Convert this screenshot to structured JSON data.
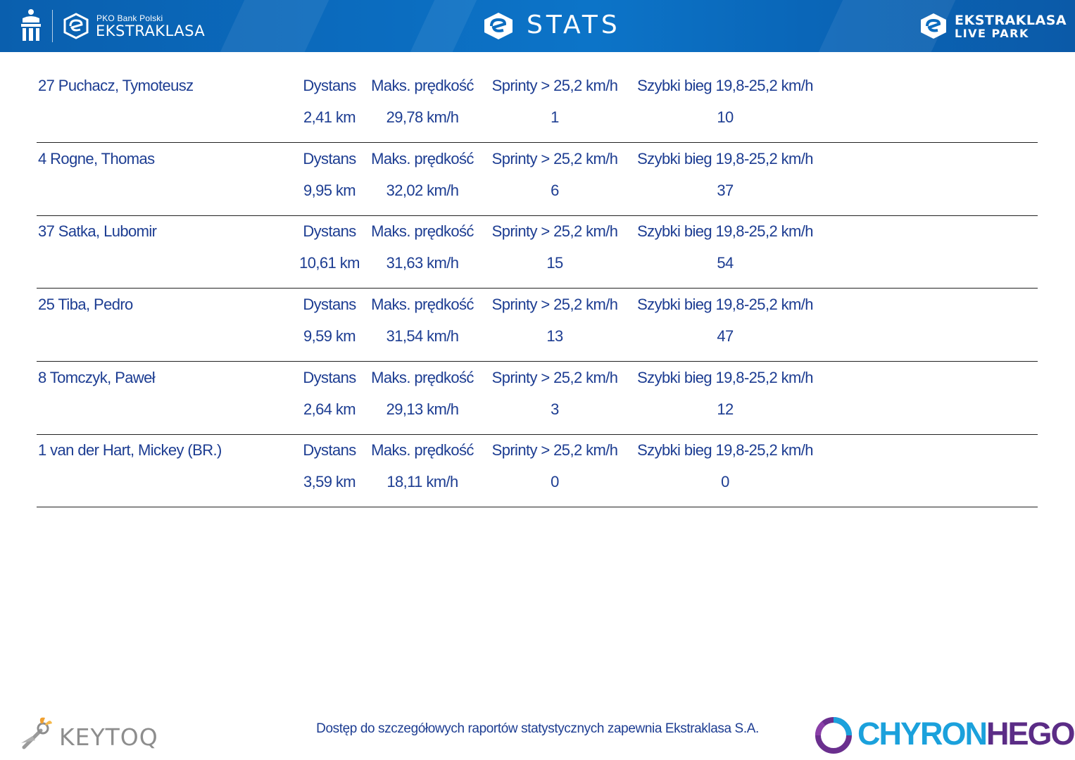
{
  "header": {
    "sponsor": "PKO Bank Polski",
    "league": "EKSTRAKLASA",
    "title": "STATS",
    "livepark_line1": "EKSTRAKLASA",
    "livepark_line2": "LIVE PARK"
  },
  "columns": {
    "distance": "Dystans",
    "max_speed": "Maks. prędkość",
    "sprints": "Sprinty > 25,2 km/h",
    "fast_runs": "Szybki bieg 19,8-25,2 km/h"
  },
  "players": [
    {
      "name": "27  Puchacz, Tymoteusz",
      "distance": "2,41 km",
      "max_speed": "29,78 km/h",
      "sprints": "1",
      "fast_runs": "10"
    },
    {
      "name": "4  Rogne, Thomas",
      "distance": "9,95 km",
      "max_speed": "32,02 km/h",
      "sprints": "6",
      "fast_runs": "37"
    },
    {
      "name": "37  Satka, Lubomir",
      "distance": "10,61 km",
      "max_speed": "31,63 km/h",
      "sprints": "15",
      "fast_runs": "54"
    },
    {
      "name": "25  Tiba, Pedro",
      "distance": "9,59 km",
      "max_speed": "31,54 km/h",
      "sprints": "13",
      "fast_runs": "47"
    },
    {
      "name": "8  Tomczyk, Paweł",
      "distance": "2,64 km",
      "max_speed": "29,13 km/h",
      "sprints": "3",
      "fast_runs": "12"
    },
    {
      "name": "1  van der Hart, Mickey (BR.)",
      "distance": "3,59 km",
      "max_speed": "18,11 km/h",
      "sprints": "0",
      "fast_runs": "0"
    }
  ],
  "footer": {
    "note": "Dostęp do szczegółowych raportów statystycznych zapewnia Ekstraklasa S.A.",
    "keytoq": "KEYTOQ",
    "chyron_part1": "CHYRON",
    "chyron_part2": "HEGO"
  },
  "colors": {
    "header_blue": "#0b6cbf",
    "text_blue": "#1d3d92",
    "chyron_cyan": "#1ba1dc",
    "chyron_purple": "#5b2c86",
    "keytoq_gray": "#8d8d8d"
  }
}
